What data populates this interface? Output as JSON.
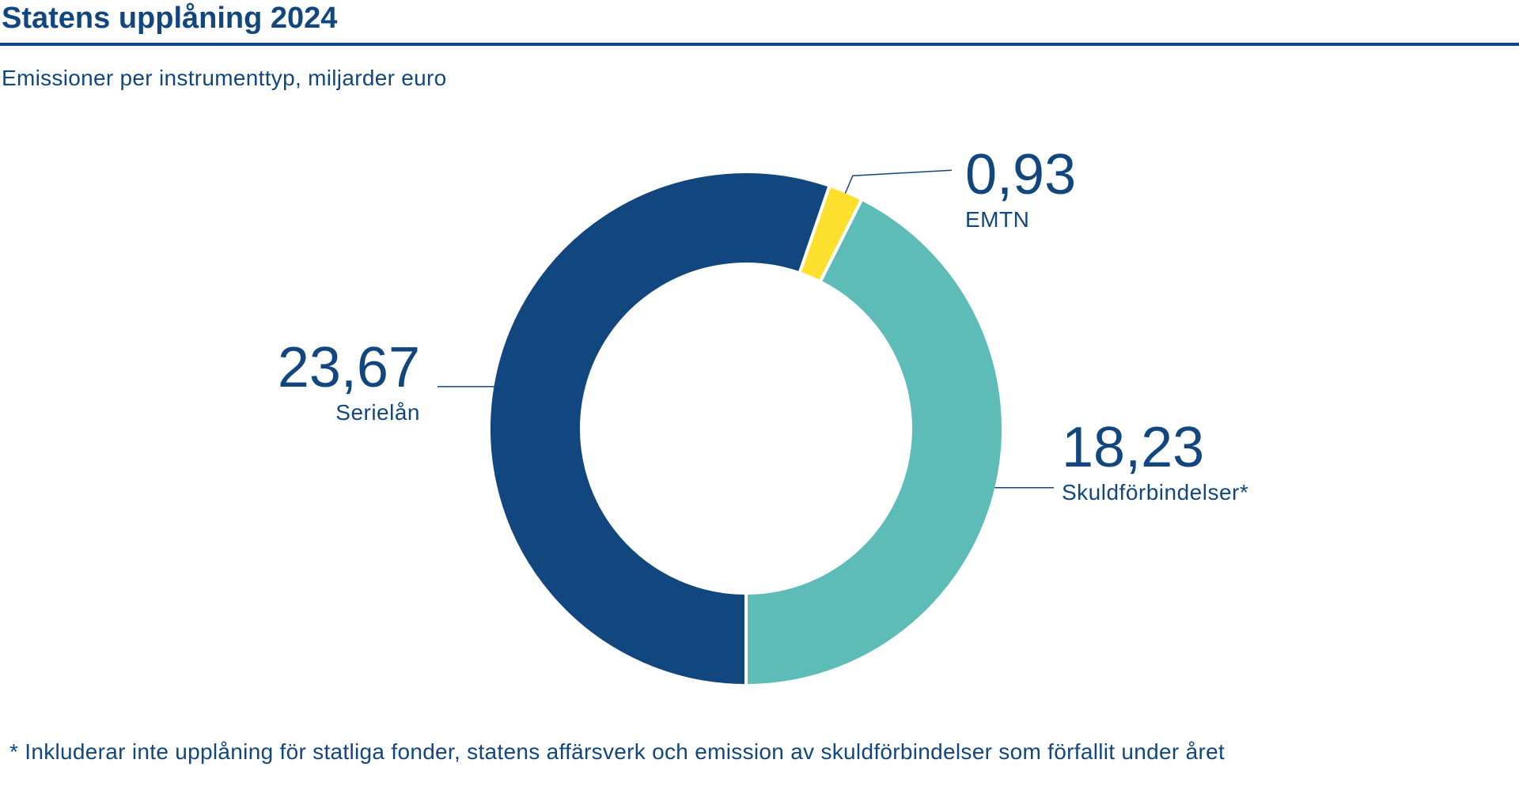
{
  "header": {
    "title": "Statens upplåning 2024",
    "subtitle": "Emissioner per instrumenttyp, miljarder euro"
  },
  "footnote": "* Inkluderar inte upplåning för statliga fonder, statens affärsverk och emission av skuldförbindelser som förfallit under året",
  "colors": {
    "text": "#11477e",
    "rule": "#11477e",
    "leader": "#11477e",
    "separator": "#ffffff"
  },
  "chart_data": {
    "type": "pie",
    "variant": "donut",
    "title": "Statens upplåning 2024",
    "subtitle": "Emissioner per instrumenttyp, miljarder euro",
    "legend": "none",
    "start": "bottom",
    "direction": "counter-clockwise",
    "slices": [
      {
        "label": "Skuldförbindelser*",
        "value": 18.23,
        "value_label": "18,23",
        "color": "#5dbcb8"
      },
      {
        "label": "EMTN",
        "value": 0.93,
        "value_label": "0,93",
        "color": "#fce02d"
      },
      {
        "label": "Serielån",
        "value": 23.67,
        "value_label": "23,67",
        "color": "#11477e"
      }
    ]
  }
}
